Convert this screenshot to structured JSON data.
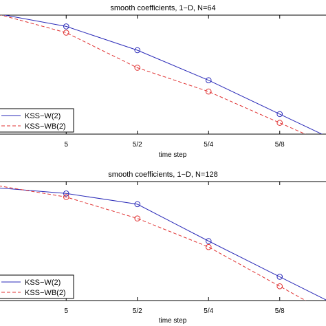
{
  "chart_data": [
    {
      "type": "line",
      "title": "smooth coefficients, 1−D, N=64",
      "xlabel": "time step",
      "ylabel": "",
      "x_scale": "log",
      "x": [
        "5",
        "5/2",
        "5/4",
        "5/8"
      ],
      "x_tick_labels": [
        "5",
        "5/2",
        "5/4",
        "5/8"
      ],
      "grid": false,
      "legend_position": "lower-left",
      "series": [
        {
          "name": "KSS−W(2)",
          "color": "#2a2ab8",
          "style": "solid",
          "marker": "circle",
          "values": [
            0.76,
            0.57,
            0.33,
            0.06
          ]
        },
        {
          "name": "KSS−WB(2)",
          "color": "#e03030",
          "style": "dashed",
          "marker": "circle",
          "values": [
            0.71,
            0.43,
            0.24,
            -0.01
          ]
        }
      ]
    },
    {
      "type": "line",
      "title": "smooth coefficients, 1−D, N=128",
      "xlabel": "time step",
      "ylabel": "",
      "x_scale": "log",
      "x": [
        "5",
        "5/2",
        "5/4",
        "5/8"
      ],
      "x_tick_labels": [
        "5",
        "5/2",
        "5/4",
        "5/8"
      ],
      "grid": false,
      "legend_position": "lower-left",
      "series": [
        {
          "name": "KSS−W(2)",
          "color": "#2a2ab8",
          "style": "solid",
          "marker": "circle",
          "values": [
            0.85,
            0.76,
            0.45,
            0.15
          ]
        },
        {
          "name": "KSS−WB(2)",
          "color": "#e03030",
          "style": "dashed",
          "marker": "circle",
          "values": [
            0.82,
            0.64,
            0.4,
            0.07
          ]
        }
      ]
    }
  ]
}
